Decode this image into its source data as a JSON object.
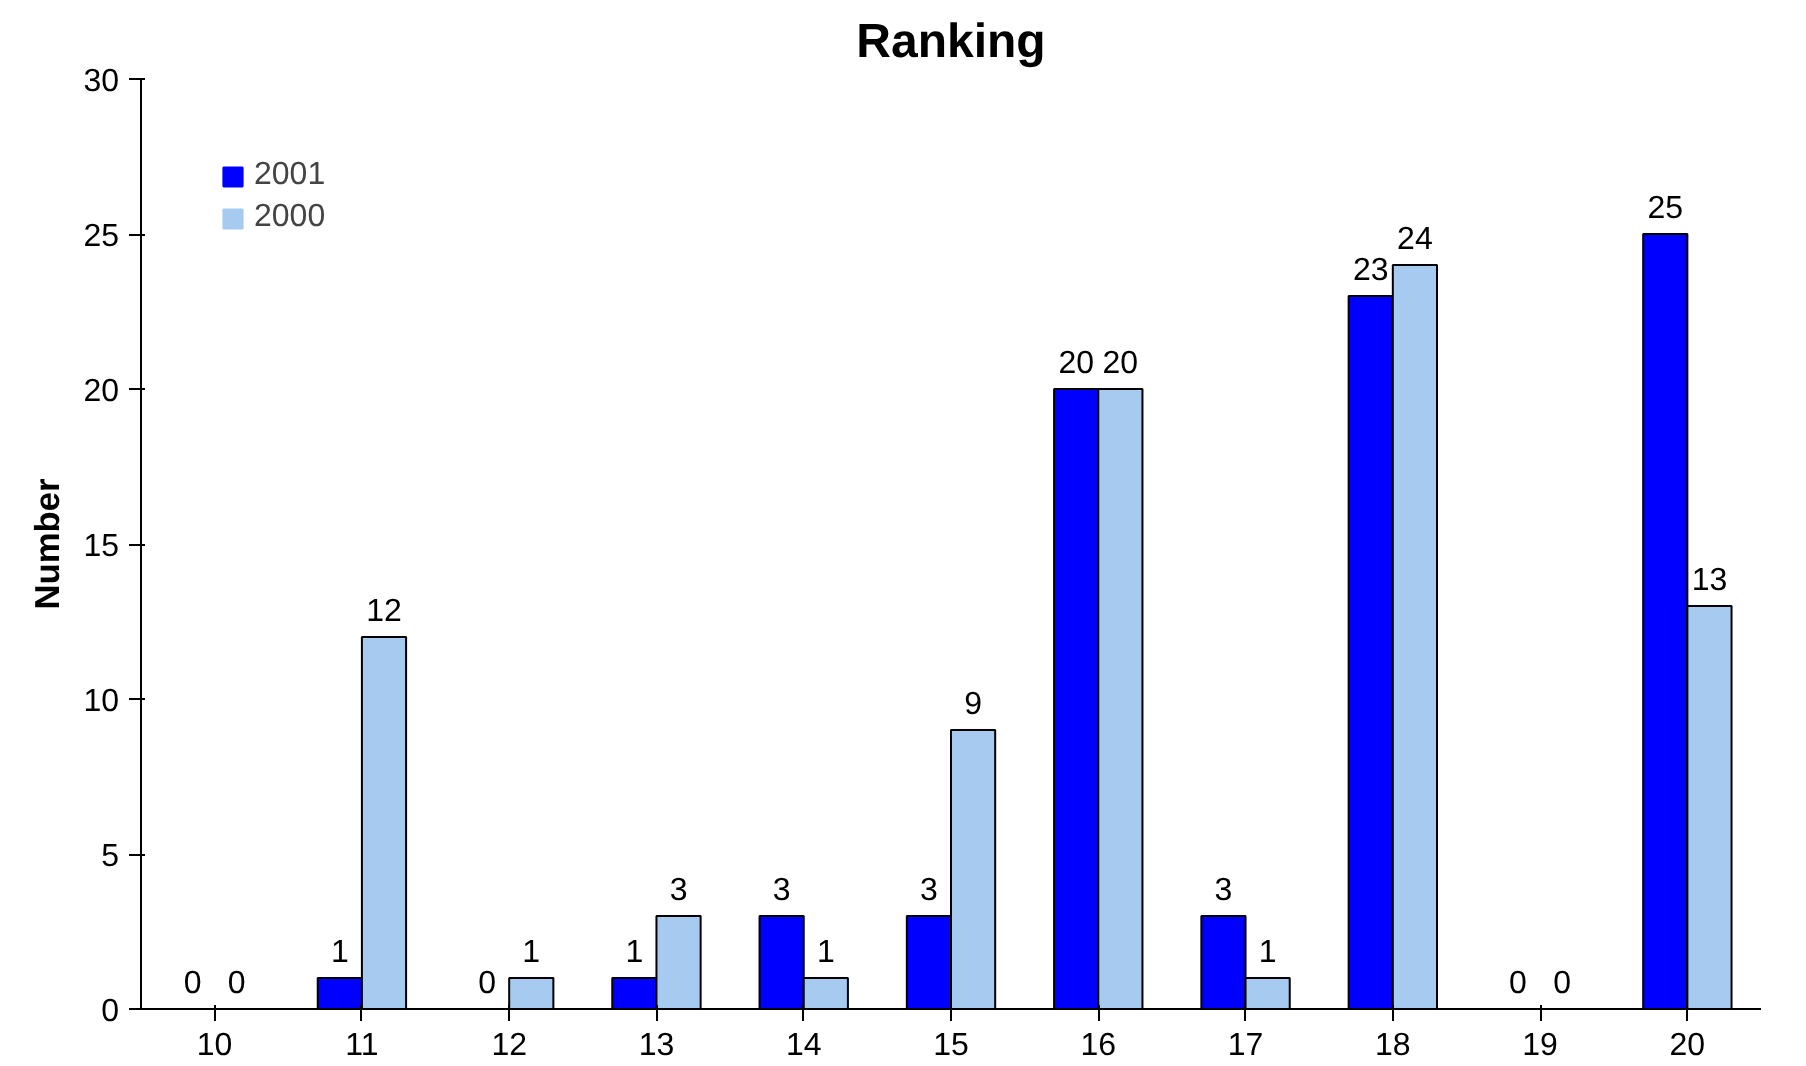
{
  "chart_data": {
    "type": "bar",
    "title": "Ranking",
    "ylabel": "Number",
    "categories": [
      "10",
      "11",
      "12",
      "13",
      "14",
      "15",
      "16",
      "17",
      "18",
      "19",
      "20"
    ],
    "series": [
      {
        "name": "2001",
        "color": "#0000ff",
        "values": [
          0,
          1,
          0,
          1,
          3,
          3,
          20,
          3,
          23,
          0,
          25
        ]
      },
      {
        "name": "2000",
        "color": "#a6caf0",
        "values": [
          0,
          12,
          1,
          3,
          1,
          9,
          20,
          1,
          24,
          0,
          13
        ]
      }
    ],
    "ylim": [
      0,
      30
    ],
    "yticks": [
      0,
      5,
      10,
      15,
      20,
      25,
      30
    ],
    "grid": false,
    "legend": "top left",
    "data_labels": true
  }
}
